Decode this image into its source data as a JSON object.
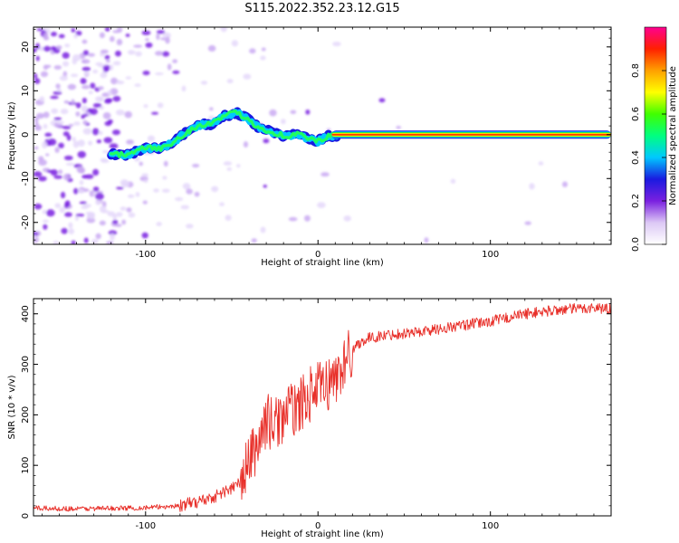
{
  "title": "S115.2022.352.23.12.G15",
  "chart_data": [
    {
      "type": "heatmap",
      "xlabel": "Height of straight line (km)",
      "ylabel": "Frequency (Hz)",
      "xlim": [
        -165,
        170
      ],
      "ylim": [
        -25,
        24.5
      ],
      "xticks": [
        -100,
        0,
        100
      ],
      "yticks": [
        -20,
        -10,
        0,
        10,
        20
      ],
      "colorbar": {
        "label": "Normalized spectral amplitude",
        "range": [
          0,
          1
        ],
        "ticks": [
          0.0,
          0.2,
          0.4,
          0.6,
          0.8
        ],
        "colors": [
          "#ffffff",
          "#dcc8f5",
          "#7a20e0",
          "#1a1ae0",
          "#00c8ff",
          "#00ff80",
          "#40ff00",
          "#ffff00",
          "#ffa000",
          "#ff2000",
          "#ff0090"
        ]
      },
      "ridge_frequency_hz": {
        "x": [
          -120,
          -110,
          -100,
          -92,
          -85,
          -78,
          -70,
          -62,
          -55,
          -48,
          -42,
          -36,
          -30,
          -24,
          -18,
          -12,
          -6,
          0,
          6,
          12,
          20,
          40,
          80,
          120,
          170
        ],
        "y": [
          -4.5,
          -4.5,
          -3,
          -3.2,
          -2,
          0,
          2,
          2.5,
          4,
          5,
          4,
          2,
          1,
          0.3,
          -0.5,
          0.3,
          -0.8,
          -1.5,
          -0.3,
          -0.1,
          0,
          0,
          0,
          0,
          0
        ]
      }
    },
    {
      "type": "line",
      "xlabel": "Height of straight line (km)",
      "ylabel": "SNR (10 * v/v)",
      "xlim": [
        -165,
        170
      ],
      "ylim": [
        0,
        430
      ],
      "xticks": [
        -100,
        0,
        100
      ],
      "yticks": [
        0,
        100,
        200,
        300,
        400
      ],
      "color": "#e8302a",
      "series": [
        {
          "x": [
            -165,
            -140,
            -120,
            -100,
            -80,
            -70,
            -60,
            -50,
            -45,
            -40,
            -35,
            -30,
            -25,
            -20,
            -15,
            -10,
            -5,
            0,
            5,
            10,
            15,
            20,
            25,
            30,
            40,
            60,
            80,
            100,
            120,
            140,
            160,
            170
          ],
          "values": [
            15,
            14,
            15,
            16,
            20,
            28,
            38,
            55,
            65,
            110,
            140,
            190,
            180,
            200,
            210,
            220,
            240,
            250,
            260,
            270,
            300,
            330,
            345,
            352,
            358,
            365,
            375,
            385,
            400,
            408,
            412,
            410
          ]
        }
      ]
    }
  ]
}
